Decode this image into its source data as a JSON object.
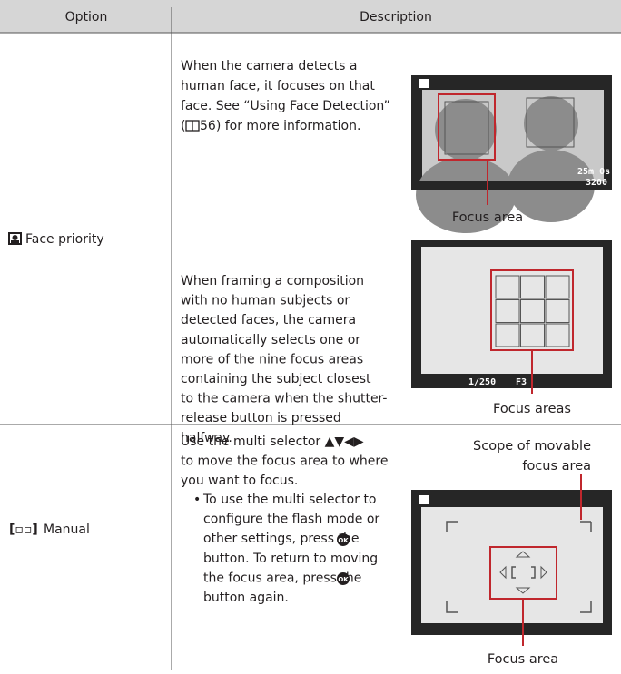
{
  "header": {
    "option": "Option",
    "description": "Description"
  },
  "rows": [
    {
      "option": "Face priority",
      "paragraphs": [
        {
          "lines": [
            "When the camera detects a",
            "human face, it focuses on that",
            "face. See “Using Face Detection”"
          ],
          "last_before": "(",
          "last_after": "56) for more information."
        },
        {
          "lines": [
            "When framing a composition",
            "with no human subjects or",
            "detected faces, the camera",
            "automatically selects one or",
            "more of the nine focus areas",
            "containing the subject closest",
            "to the camera when the shutter-",
            "release button is pressed",
            "halfway."
          ]
        }
      ],
      "images": [
        {
          "caption": "Focus area",
          "screen_texts": [
            "25m 0s",
            "3200"
          ]
        },
        {
          "caption": "Focus areas",
          "screen_texts": [
            "1/250",
            "F3"
          ]
        }
      ]
    },
    {
      "option": "Manual",
      "lines": [
        "Use the multi selector ▲▼◀▶",
        "to move the focus area to where",
        "you want to focus."
      ],
      "bullet": "•",
      "bullet_lines": [
        "To use the multi selector to",
        "configure the flash mode or",
        "other settings, press the",
        "button. To return to moving",
        "the focus area, press the",
        "button again."
      ],
      "image": {
        "label_lines": [
          "Scope of movable",
          "focus area"
        ],
        "caption": "Focus area"
      }
    }
  ]
}
